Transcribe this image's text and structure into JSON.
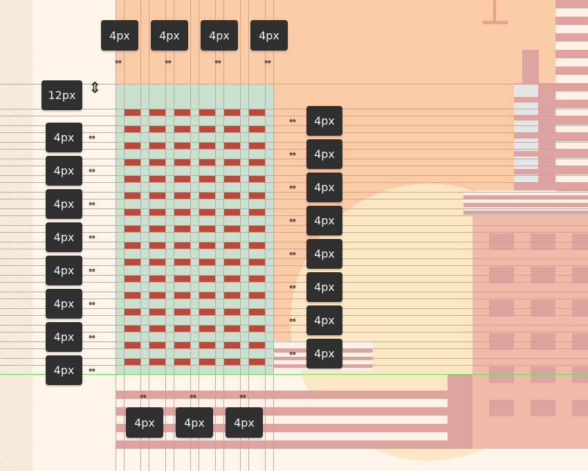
{
  "measurements": {
    "top_spacing": [
      "4px",
      "4px",
      "4px",
      "4px"
    ],
    "top_margin": "12px",
    "left_spacing": [
      "4px",
      "4px",
      "4px",
      "4px",
      "4px",
      "4px",
      "4px",
      "4px"
    ],
    "right_spacing": [
      "4px",
      "4px",
      "4px",
      "4px",
      "4px",
      "4px",
      "4px",
      "4px"
    ],
    "bottom_spacing": [
      "4px",
      "4px",
      "4px"
    ]
  },
  "window_grid": {
    "columns": 6,
    "rows": 16
  },
  "colors": {
    "window": "#b84a3c",
    "panel": "#cce0cf",
    "guide": "#6be05a",
    "sky": "#fbcba8",
    "sun": "#fde6c4",
    "building": "#f0b9aa",
    "building_dark": "#dca39f",
    "ground": "#fef5ea",
    "label_bg": "#2f2f2f"
  }
}
